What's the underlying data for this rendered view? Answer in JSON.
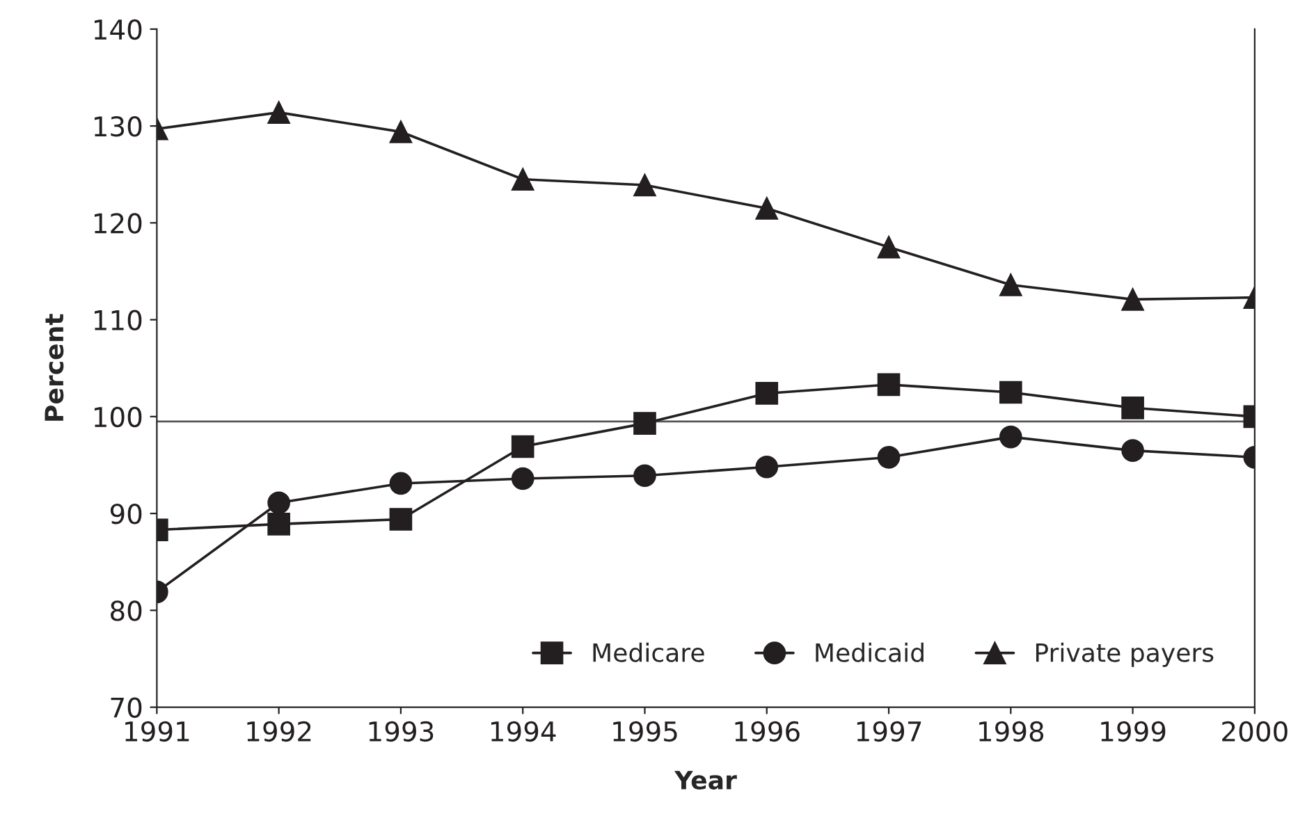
{
  "chart_data": {
    "type": "line",
    "xlabel": "Year",
    "ylabel": "Percent",
    "x": [
      1991,
      1992,
      1993,
      1994,
      1995,
      1996,
      1997,
      1998,
      1999,
      2000
    ],
    "xlim": [
      1991,
      2000
    ],
    "xticks": [
      1991,
      1992,
      1993,
      1994,
      1995,
      1996,
      1997,
      1998,
      1999,
      2000
    ],
    "ylim": [
      70,
      140
    ],
    "yticks": [
      70,
      80,
      90,
      100,
      110,
      120,
      130,
      140
    ],
    "series": [
      {
        "name": "Medicare",
        "color": "#231f20",
        "marker": "square",
        "values": [
          88.3,
          88.9,
          89.4,
          96.9,
          99.3,
          102.4,
          103.3,
          102.5,
          100.9,
          100.0
        ]
      },
      {
        "name": "Medicaid",
        "color": "#231f20",
        "marker": "circle",
        "values": [
          81.9,
          91.1,
          93.1,
          93.6,
          93.9,
          94.8,
          95.8,
          97.9,
          96.5,
          95.8
        ]
      },
      {
        "name": "Private payers",
        "color": "#231f20",
        "marker": "triangle",
        "values": [
          129.7,
          131.4,
          129.4,
          124.5,
          123.9,
          121.5,
          117.5,
          113.6,
          112.1,
          112.3
        ]
      }
    ],
    "ref_lines": [
      {
        "axis": "y",
        "value": 99.5,
        "color": "#555555"
      }
    ],
    "legend": "bottom right",
    "grid": false,
    "line_style": "solid"
  }
}
